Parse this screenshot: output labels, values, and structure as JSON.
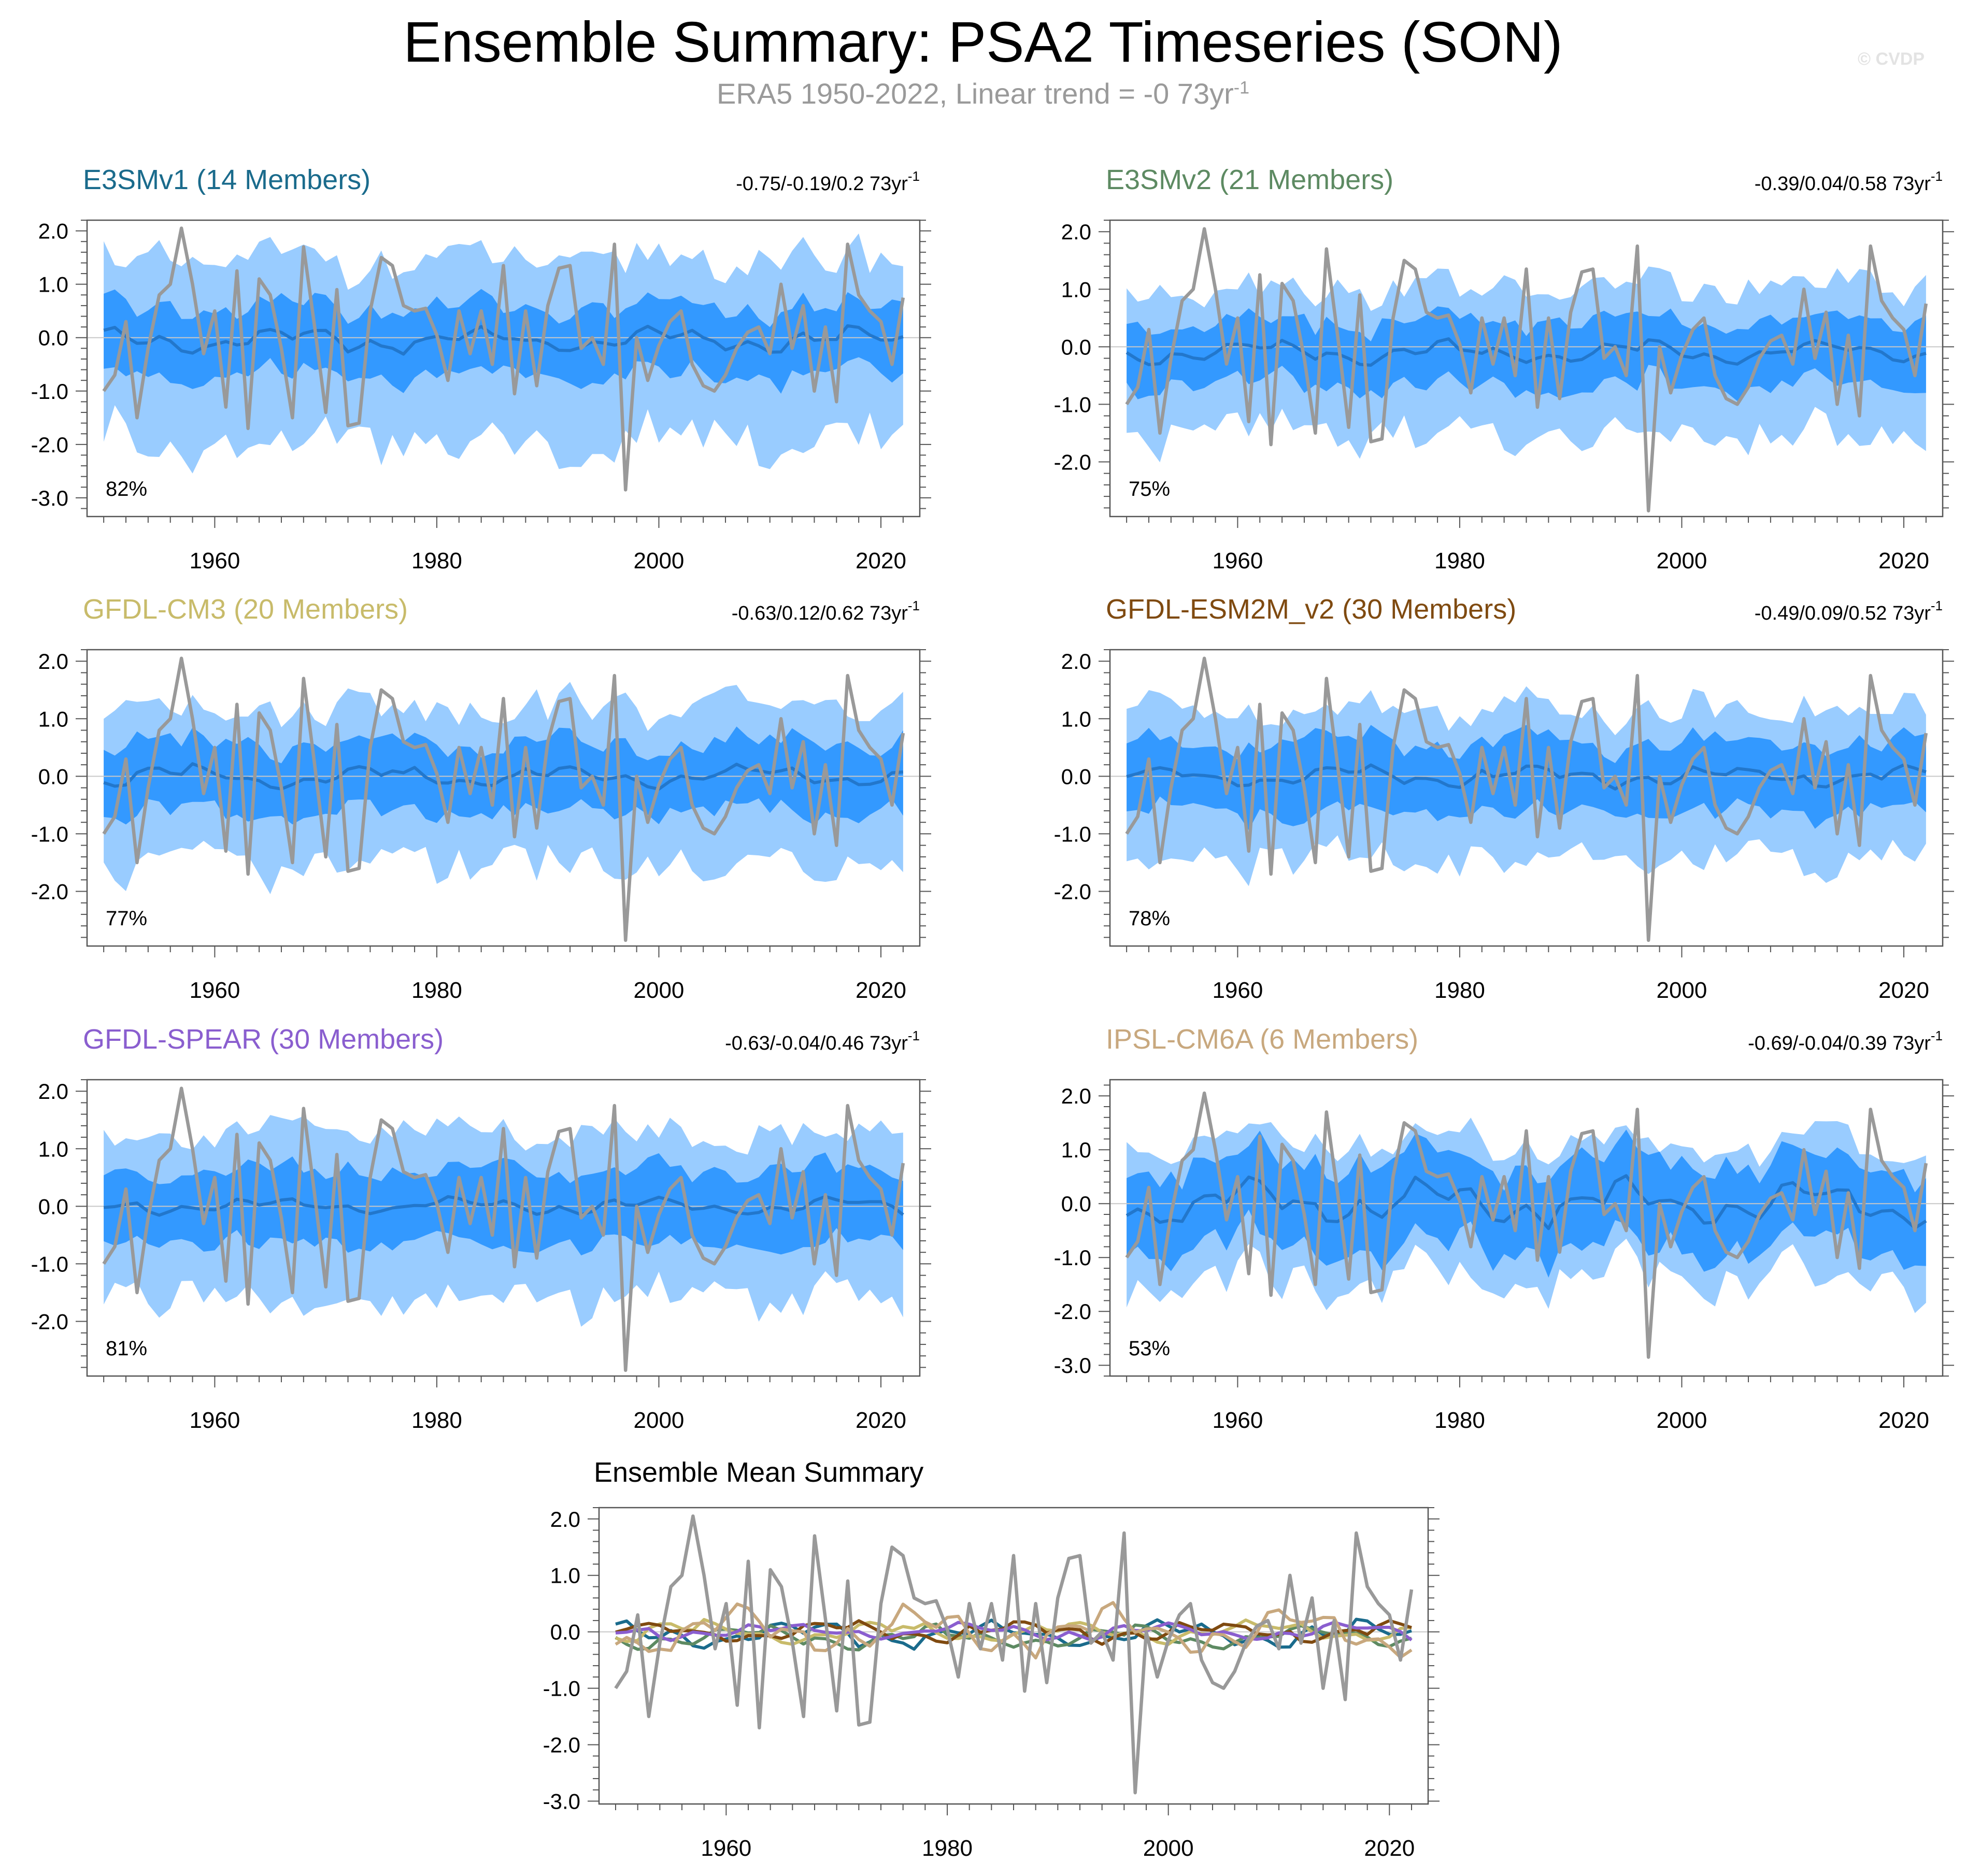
{
  "title": "Ensemble Summary: PSA2 Timeseries (SON)",
  "subtitle": "ERA5 1950-2022, Linear trend = -0 73yr",
  "subtitle_sup": "-1",
  "watermark": "© CVDP",
  "colors": {
    "outer_band": "#99ccff",
    "inner_band": "#3399ff",
    "ensemble_mean": "#2277cc",
    "observed": "#999999",
    "zero_line": "#c8c8c8"
  },
  "chart_data": [
    {
      "type": "line",
      "title": "E3SMv1 (14 Members)",
      "title_color": "#1a6b8c",
      "trend": "-0.75/-0.19/0.2 73yr",
      "trend_sup": "-1",
      "percent": "82%",
      "ylim": [
        -3.35,
        2.2
      ],
      "yticks": [
        2.0,
        1.0,
        0.0,
        -1.0,
        -2.0,
        -3.0
      ],
      "ytick_labels": [
        "2.0",
        "1.0",
        "0.0",
        "-1.0",
        "-2.0",
        "-3.0"
      ],
      "xlim": [
        1948.5,
        2023.5
      ],
      "xticks": [
        1960,
        1980,
        2000,
        2020
      ],
      "xtick_labels": [
        "1960",
        "1980",
        "2000",
        "2020"
      ],
      "outer_half_width": 1.45,
      "inner_half_width": 0.62,
      "mean_scale": 0.25,
      "mean_offset": -0.05
    },
    {
      "type": "line",
      "title": "E3SMv2 (21 Members)",
      "title_color": "#5d8a62",
      "trend": "-0.39/0.04/0.58 73yr",
      "trend_sup": "-1",
      "percent": "75%",
      "ylim": [
        -2.95,
        2.2
      ],
      "yticks": [
        2.0,
        1.0,
        0.0,
        -1.0,
        -2.0
      ],
      "ytick_labels": [
        "2.0",
        "1.0",
        "0.0",
        "-1.0",
        "-2.0"
      ],
      "xlim": [
        1948.5,
        2023.5
      ],
      "xticks": [
        1960,
        1980,
        2000,
        2020
      ],
      "xtick_labels": [
        "1960",
        "1980",
        "2000",
        "2020"
      ],
      "outer_half_width": 1.1,
      "inner_half_width": 0.55,
      "mean_scale": 0.22,
      "mean_offset": -0.1
    },
    {
      "type": "line",
      "title": "GFDL-CM3 (20 Members)",
      "title_color": "#c8bb6a",
      "trend": "-0.63/0.12/0.62 73yr",
      "trend_sup": "-1",
      "percent": "77%",
      "ylim": [
        -2.95,
        2.2
      ],
      "yticks": [
        2.0,
        1.0,
        0.0,
        -1.0,
        -2.0
      ],
      "ytick_labels": [
        "2.0",
        "1.0",
        "0.0",
        "-1.0",
        "-2.0"
      ],
      "xlim": [
        1948.5,
        2023.5
      ],
      "xticks": [
        1960,
        1980,
        2000,
        2020
      ],
      "xtick_labels": [
        "1960",
        "1980",
        "2000",
        "2020"
      ],
      "outer_half_width": 1.2,
      "inner_half_width": 0.58,
      "mean_scale": 0.22,
      "mean_offset": 0.0
    },
    {
      "type": "line",
      "title": "GFDL-ESM2M_v2 (30 Members)",
      "title_color": "#7f4a10",
      "trend": "-0.49/0.09/0.52 73yr",
      "trend_sup": "-1",
      "percent": "78%",
      "ylim": [
        -2.95,
        2.2
      ],
      "yticks": [
        2.0,
        1.0,
        0.0,
        -1.0,
        -2.0
      ],
      "ytick_labels": [
        "2.0",
        "1.0",
        "0.0",
        "-1.0",
        "-2.0"
      ],
      "xlim": [
        1948.5,
        2023.5
      ],
      "xticks": [
        1960,
        1980,
        2000,
        2020
      ],
      "xtick_labels": [
        "1960",
        "1980",
        "2000",
        "2020"
      ],
      "outer_half_width": 1.15,
      "inner_half_width": 0.6,
      "mean_scale": 0.2,
      "mean_offset": 0.0
    },
    {
      "type": "line",
      "title": "GFDL-SPEAR (30 Members)",
      "title_color": "#8a5ecf",
      "trend": "-0.63/-0.04/0.46 73yr",
      "trend_sup": "-1",
      "percent": "81%",
      "ylim": [
        -2.95,
        2.2
      ],
      "yticks": [
        2.0,
        1.0,
        0.0,
        -1.0,
        -2.0
      ],
      "ytick_labels": [
        "2.0",
        "1.0",
        "0.0",
        "-1.0",
        "-2.0"
      ],
      "xlim": [
        1948.5,
        2023.5
      ],
      "xticks": [
        1960,
        1980,
        2000,
        2020
      ],
      "xtick_labels": [
        "1960",
        "1980",
        "2000",
        "2020"
      ],
      "outer_half_width": 1.25,
      "inner_half_width": 0.62,
      "mean_scale": 0.15,
      "mean_offset": 0.0
    },
    {
      "type": "line",
      "title": "IPSL-CM6A (6 Members)",
      "title_color": "#c8a87e",
      "trend": "-0.69/-0.04/0.39 73yr",
      "trend_sup": "-1",
      "percent": "53%",
      "ylim": [
        -3.2,
        2.3
      ],
      "yticks": [
        2.0,
        1.0,
        0.0,
        -1.0,
        -2.0,
        -3.0
      ],
      "ytick_labels": [
        "2.0",
        "1.0",
        "0.0",
        "-1.0",
        "-2.0",
        "-3.0"
      ],
      "xlim": [
        1948.5,
        2023.5
      ],
      "xticks": [
        1960,
        1980,
        2000,
        2020
      ],
      "xtick_labels": [
        "1960",
        "1980",
        "2000",
        "2020"
      ],
      "outer_half_width": 1.1,
      "inner_half_width": 0.75,
      "mean_scale": 0.45,
      "mean_offset": 0.0
    },
    {
      "type": "line",
      "title": "Ensemble Mean Summary",
      "ylim": [
        -3.05,
        2.2
      ],
      "yticks": [
        2.0,
        1.0,
        0.0,
        -1.0,
        -2.0,
        -3.0
      ],
      "ytick_labels": [
        "2.0",
        "1.0",
        "0.0",
        "-1.0",
        "-2.0",
        "-3.0"
      ],
      "xlim": [
        1948.5,
        2023.5
      ],
      "xticks": [
        1960,
        1980,
        2000,
        2020
      ],
      "xtick_labels": [
        "1960",
        "1980",
        "2000",
        "2020"
      ],
      "series": [
        {
          "name": "E3SMv1",
          "color": "#1a6b8c",
          "scale": 0.25,
          "offset": -0.05
        },
        {
          "name": "E3SMv2",
          "color": "#5d8a62",
          "scale": 0.22,
          "offset": -0.1
        },
        {
          "name": "GFDL-CM3",
          "color": "#c8bb6a",
          "scale": 0.22,
          "offset": 0.0
        },
        {
          "name": "GFDL-ESM2M_v2",
          "color": "#7f4a10",
          "scale": 0.2,
          "offset": 0.0
        },
        {
          "name": "GFDL-SPEAR",
          "color": "#8a5ecf",
          "scale": 0.15,
          "offset": 0.0
        },
        {
          "name": "IPSL-CM6A",
          "color": "#c8a87e",
          "scale": 0.45,
          "offset": 0.0
        }
      ]
    }
  ],
  "observed": {
    "name": "ERA5",
    "x": [
      1950,
      1951,
      1952,
      1953,
      1954,
      1955,
      1956,
      1957,
      1958,
      1959,
      1960,
      1961,
      1962,
      1963,
      1964,
      1965,
      1966,
      1967,
      1968,
      1969,
      1970,
      1971,
      1972,
      1973,
      1974,
      1975,
      1976,
      1977,
      1978,
      1979,
      1980,
      1981,
      1982,
      1983,
      1984,
      1985,
      1986,
      1987,
      1988,
      1989,
      1990,
      1991,
      1992,
      1993,
      1994,
      1995,
      1996,
      1997,
      1998,
      1999,
      2000,
      2001,
      2002,
      2003,
      2004,
      2005,
      2006,
      2007,
      2008,
      2009,
      2010,
      2011,
      2012,
      2013,
      2014,
      2015,
      2016,
      2017,
      2018,
      2019,
      2020,
      2021,
      2022
    ],
    "y": [
      -1.0,
      -0.7,
      0.3,
      -1.5,
      -0.2,
      0.8,
      1.0,
      2.05,
      1.0,
      -0.3,
      0.5,
      -1.3,
      1.25,
      -1.7,
      1.1,
      0.8,
      -0.2,
      -1.5,
      1.7,
      0.2,
      -1.4,
      0.9,
      -1.65,
      -1.6,
      0.5,
      1.5,
      1.35,
      0.6,
      0.5,
      0.55,
      0.05,
      -0.8,
      0.5,
      -0.3,
      0.5,
      -0.5,
      1.35,
      -1.05,
      0.5,
      -0.9,
      0.6,
      1.3,
      1.35,
      -0.2,
      0.0,
      -0.5,
      1.75,
      -2.85,
      0.0,
      -0.8,
      -0.15,
      0.3,
      0.5,
      -0.5,
      -0.9,
      -1.0,
      -0.7,
      -0.2,
      0.1,
      0.2,
      -0.3,
      1.0,
      -0.2,
      0.6,
      -1.0,
      0.2,
      -1.2,
      1.75,
      0.8,
      0.5,
      0.3,
      -0.5,
      0.75
    ]
  }
}
